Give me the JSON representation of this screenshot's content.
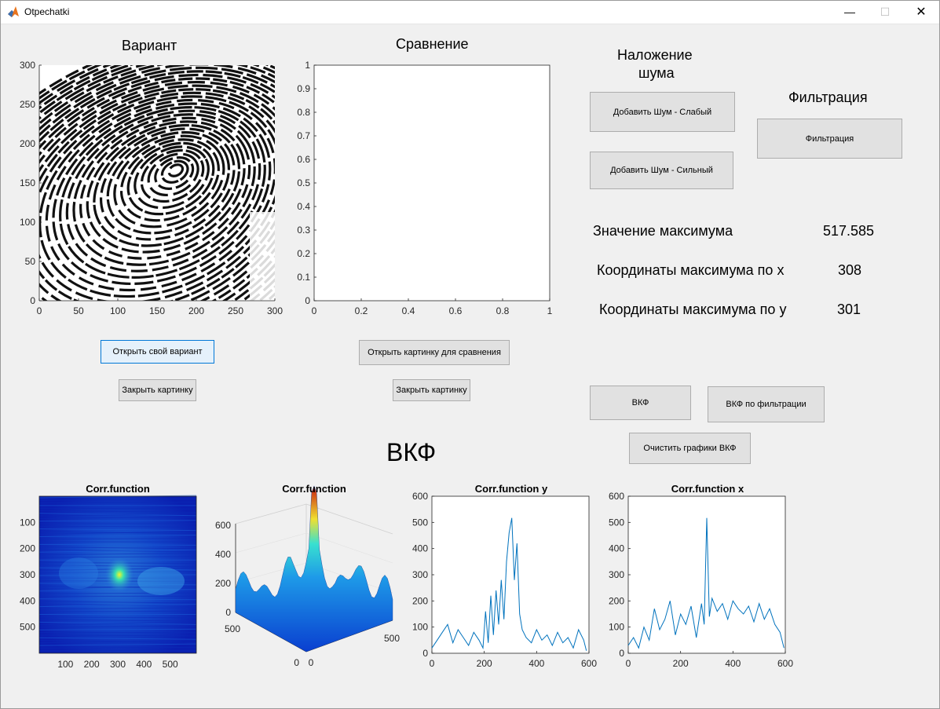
{
  "window": {
    "title": "Otpechatki",
    "minimize_glyph": "—",
    "maximize_glyph": "☐",
    "close_glyph": "✕",
    "app_icon": "matlab-icon"
  },
  "labels": {
    "variant": "Вариант",
    "comparison": "Сравнение",
    "noise_line1": "Наложение",
    "noise_line2": "шума",
    "filtration": "Фильтрация",
    "max_value_label": "Значение максимума",
    "max_value": "517.585",
    "max_x_label": "Координаты максимума по x",
    "max_x": "308",
    "max_y_label": "Координаты максимума по y",
    "max_y": "301",
    "vkf": "ВКФ"
  },
  "buttons": {
    "add_noise_weak": "Добавить Шум - Слабый",
    "add_noise_strong": "Добавить Шум - Сильный",
    "filtration": "Фильтрация",
    "open_variant": "Открыть свой вариант",
    "close_picture_1": "Закрыть картинку",
    "open_compare": "Открыть картинку для сравнения",
    "close_picture_2": "Закрыть картинку",
    "vkf": "ВКФ",
    "vkf_filtered": "ВКФ по фильтрации",
    "clear_vkf": "Очистить графики ВКФ"
  },
  "axes": {
    "variant": {
      "xticks": [
        "0",
        "50",
        "100",
        "150",
        "200",
        "250",
        "300"
      ],
      "yticks": [
        "0",
        "50",
        "100",
        "150",
        "200",
        "250",
        "300"
      ]
    },
    "comparison": {
      "xticks": [
        "0",
        "0.2",
        "0.4",
        "0.6",
        "0.8",
        "1"
      ],
      "yticks": [
        "0",
        "0.1",
        "0.2",
        "0.3",
        "0.4",
        "0.5",
        "0.6",
        "0.7",
        "0.8",
        "0.9",
        "1"
      ]
    },
    "corr_image": {
      "title": "Corr.function",
      "xticks": [
        "100",
        "200",
        "300",
        "400",
        "500"
      ],
      "yticks": [
        "100",
        "200",
        "300",
        "400",
        "500"
      ]
    },
    "corr_surface": {
      "title": "Corr.function",
      "zticks": [
        "0",
        "200",
        "400",
        "600"
      ],
      "left_ticks": [
        "500",
        "0"
      ],
      "right_ticks": [
        "0",
        "500"
      ]
    },
    "corr_y": {
      "title": "Corr.function y",
      "xticks": [
        "0",
        "200",
        "400",
        "600"
      ],
      "yticks": [
        "0",
        "100",
        "200",
        "300",
        "400",
        "500",
        "600"
      ]
    },
    "corr_x": {
      "title": "Corr.function x",
      "xticks": [
        "0",
        "200",
        "400",
        "600"
      ],
      "yticks": [
        "0",
        "100",
        "200",
        "300",
        "400",
        "500",
        "600"
      ]
    }
  },
  "chart_data": [
    {
      "type": "line",
      "title": "Corr.function y",
      "xlim": [
        0,
        600
      ],
      "ylim": [
        0,
        600
      ],
      "color": "#0072bd",
      "x": [
        0,
        20,
        40,
        60,
        80,
        100,
        120,
        140,
        160,
        180,
        195,
        205,
        215,
        225,
        235,
        245,
        255,
        265,
        275,
        285,
        295,
        305,
        315,
        325,
        335,
        345,
        360,
        380,
        400,
        420,
        440,
        460,
        480,
        500,
        520,
        540,
        560,
        580,
        590
      ],
      "y": [
        20,
        50,
        80,
        110,
        40,
        90,
        60,
        30,
        80,
        50,
        20,
        160,
        40,
        220,
        70,
        240,
        110,
        280,
        130,
        350,
        460,
        517,
        280,
        420,
        150,
        90,
        60,
        40,
        90,
        50,
        70,
        30,
        80,
        40,
        60,
        20,
        90,
        50,
        10
      ]
    },
    {
      "type": "line",
      "title": "Corr.function x",
      "xlim": [
        0,
        600
      ],
      "ylim": [
        0,
        600
      ],
      "color": "#0072bd",
      "x": [
        0,
        20,
        40,
        60,
        80,
        100,
        120,
        140,
        160,
        180,
        200,
        220,
        240,
        260,
        280,
        290,
        300,
        310,
        320,
        340,
        360,
        380,
        400,
        420,
        440,
        460,
        480,
        500,
        520,
        540,
        560,
        580,
        595
      ],
      "y": [
        30,
        60,
        20,
        100,
        50,
        170,
        90,
        130,
        200,
        70,
        150,
        110,
        180,
        60,
        190,
        110,
        517,
        140,
        210,
        160,
        190,
        130,
        200,
        170,
        150,
        180,
        120,
        190,
        130,
        170,
        110,
        80,
        20
      ]
    },
    {
      "type": "heatmap",
      "title": "Corr.function",
      "xlim": [
        1,
        600
      ],
      "ylim": [
        1,
        600
      ],
      "peak": [
        308,
        301
      ],
      "colormap": "jet"
    }
  ],
  "colors": {
    "accent": "#0078d7",
    "line": "#0072bd",
    "panel": "#f0f0f0"
  }
}
